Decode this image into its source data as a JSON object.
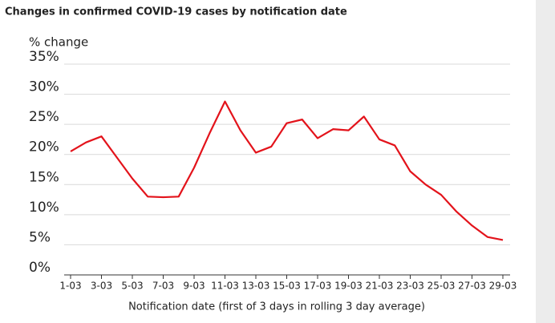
{
  "chart_data": {
    "type": "line",
    "title": "Changes in confirmed COVID-19 cases by notification date",
    "y_label": "% change",
    "x_label": "Notification date (first of 3 days in rolling 3 day average)",
    "categories": [
      "1-03",
      null,
      "3-03",
      null,
      "5-03",
      null,
      "7-03",
      null,
      "9-03",
      null,
      "11-03",
      null,
      "13-03",
      null,
      "15-03",
      null,
      "17-03",
      null,
      "19-03",
      null,
      "21-03",
      null,
      "23-03",
      null,
      "25-03",
      null,
      "27-03",
      null,
      "29-03"
    ],
    "values": [
      20.5,
      22,
      23,
      19.5,
      16,
      13,
      12.9,
      13,
      17.8,
      23.5,
      28.8,
      24,
      20.3,
      21.3,
      25.2,
      25.8,
      22.7,
      24.2,
      24,
      26.3,
      22.5,
      21.5,
      17.2,
      15,
      13.3,
      10.5,
      8.2,
      6.3,
      5.8
    ],
    "color": "#e3131b",
    "ylim": [
      0,
      35
    ],
    "yticks": [
      {
        "value": 0,
        "label": "0%"
      },
      {
        "value": 5,
        "label": "5%"
      },
      {
        "value": 10,
        "label": "10%"
      },
      {
        "value": 15,
        "label": "15%"
      },
      {
        "value": 20,
        "label": "20%"
      },
      {
        "value": 25,
        "label": "25%"
      },
      {
        "value": 30,
        "label": "30%"
      },
      {
        "value": 35,
        "label": "35%"
      }
    ],
    "grid": true
  }
}
